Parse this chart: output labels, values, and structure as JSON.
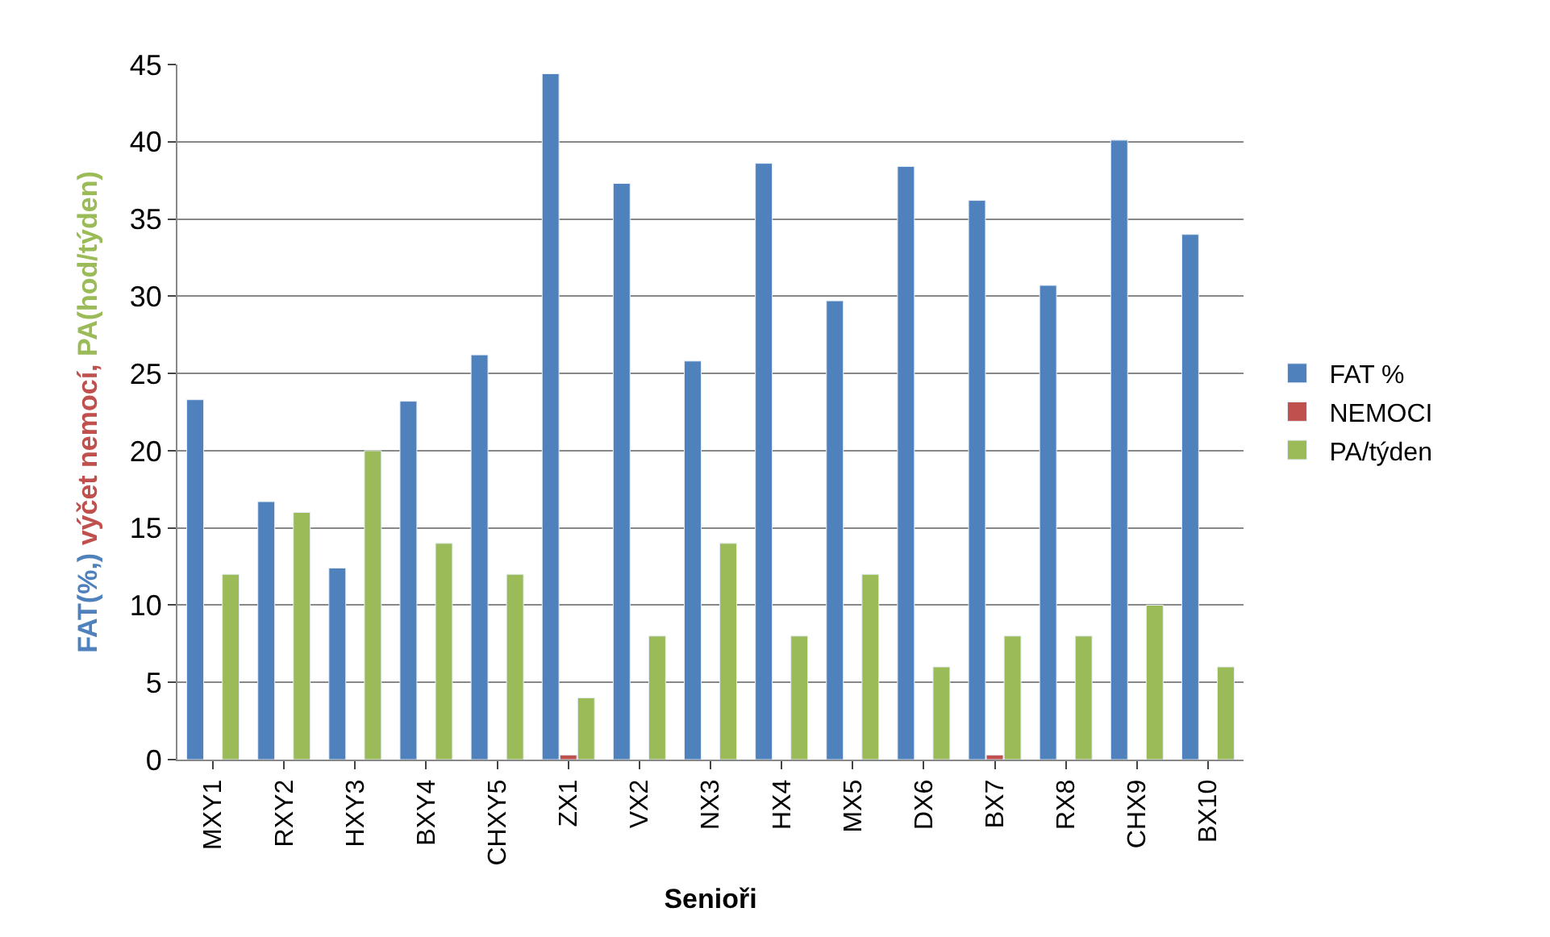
{
  "chart_data": {
    "type": "bar",
    "xlabel": "Senioři",
    "ylabel": "FAT(%,) výčet nemocí, PA(hod/týden)",
    "categories": [
      "MXY1",
      "RXY2",
      "HXY3",
      "BXY4",
      "CHXY5",
      "ZX1",
      "VX2",
      "NX3",
      "HX4",
      "MX5",
      "DX6",
      "BX7",
      "RX8",
      "CHX9",
      "BX10"
    ],
    "series": [
      {
        "name": "FAT %",
        "color": "#4f81bd",
        "values": [
          23.3,
          16.7,
          12.4,
          23.2,
          26.2,
          44.4,
          37.3,
          25.8,
          38.6,
          29.7,
          38.4,
          36.2,
          30.7,
          40.1,
          34.0
        ]
      },
      {
        "name": "NEMOCI",
        "color": "#c0504d",
        "values": [
          null,
          null,
          null,
          null,
          null,
          0.3,
          null,
          null,
          null,
          null,
          null,
          0.3,
          null,
          null,
          null
        ]
      },
      {
        "name": "PA/týden",
        "color": "#9bbb59",
        "values": [
          12,
          16,
          20,
          14,
          12,
          4,
          8,
          14,
          8,
          12,
          6,
          8,
          8,
          10,
          6
        ]
      }
    ],
    "ylim": [
      0,
      45
    ],
    "yticks": [
      0,
      5,
      10,
      15,
      20,
      25,
      30,
      35,
      40,
      45
    ],
    "grid": "y",
    "legend": "right"
  }
}
